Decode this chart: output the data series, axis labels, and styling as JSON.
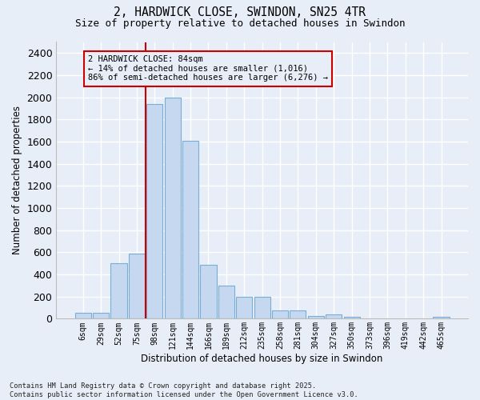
{
  "title1": "2, HARDWICK CLOSE, SWINDON, SN25 4TR",
  "title2": "Size of property relative to detached houses in Swindon",
  "xlabel": "Distribution of detached houses by size in Swindon",
  "ylabel": "Number of detached properties",
  "footnote": "Contains HM Land Registry data © Crown copyright and database right 2025.\nContains public sector information licensed under the Open Government Licence v3.0.",
  "bar_labels": [
    "6sqm",
    "29sqm",
    "52sqm",
    "75sqm",
    "98sqm",
    "121sqm",
    "144sqm",
    "166sqm",
    "189sqm",
    "212sqm",
    "235sqm",
    "258sqm",
    "281sqm",
    "304sqm",
    "327sqm",
    "350sqm",
    "373sqm",
    "396sqm",
    "419sqm",
    "442sqm",
    "465sqm"
  ],
  "bar_values": [
    50,
    50,
    500,
    590,
    1940,
    2000,
    1610,
    490,
    300,
    195,
    195,
    75,
    75,
    25,
    40,
    15,
    0,
    0,
    0,
    0,
    15
  ],
  "bar_color": "#c5d8f0",
  "bar_edge_color": "#7aadd4",
  "property_label": "2 HARDWICK CLOSE: 84sqm",
  "annotation_line1": "← 14% of detached houses are smaller (1,016)",
  "annotation_line2": "86% of semi-detached houses are larger (6,276) →",
  "vline_color": "#cc0000",
  "annotation_box_color": "#cc0000",
  "ylim": [
    0,
    2500
  ],
  "yticks": [
    0,
    200,
    400,
    600,
    800,
    1000,
    1200,
    1400,
    1600,
    1800,
    2000,
    2200,
    2400
  ],
  "bg_color": "#e8eef7",
  "grid_color": "#ffffff",
  "figsize": [
    6.0,
    5.0
  ],
  "dpi": 100,
  "vline_bar_index": 4
}
